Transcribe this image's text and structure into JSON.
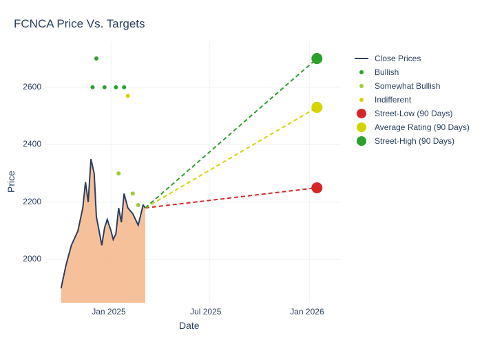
{
  "title": "FCNCA Price Vs. Targets",
  "x_label": "Date",
  "y_label": "Price",
  "background_color": "#ffffff",
  "grid_color": "#edf0f4",
  "text_color": "#2a3f5f",
  "title_fontsize": 17,
  "axis_label_fontsize": 14,
  "tick_fontsize": 12,
  "legend_fontsize": 12,
  "x_axis": {
    "type": "date",
    "range": [
      "2024-09-01",
      "2026-02-28"
    ],
    "ticks": [
      {
        "label": "Jan 2025",
        "value": "2025-01-01"
      },
      {
        "label": "Jul 2025",
        "value": "2025-07-01"
      },
      {
        "label": "Jan 2026",
        "value": "2026-01-01"
      }
    ]
  },
  "y_axis": {
    "range": [
      1850,
      2760
    ],
    "ticks": [
      2000,
      2200,
      2400,
      2600
    ]
  },
  "close_prices": {
    "label": "Close Prices",
    "line_color": "#2a3f5f",
    "line_width": 2,
    "fill_color": "#f5b58a",
    "fill_opacity": 0.85,
    "x": [
      "2024-10-01",
      "2024-10-10",
      "2024-10-20",
      "2024-11-01",
      "2024-11-10",
      "2024-11-15",
      "2024-11-20",
      "2024-11-25",
      "2024-12-01",
      "2024-12-05",
      "2024-12-10",
      "2024-12-15",
      "2024-12-20",
      "2024-12-25",
      "2025-01-01",
      "2025-01-05",
      "2025-01-10",
      "2025-01-15",
      "2025-01-20",
      "2025-01-25",
      "2025-02-01",
      "2025-02-10",
      "2025-02-20",
      "2025-03-01",
      "2025-03-05"
    ],
    "y": [
      1900,
      1980,
      2050,
      2100,
      2180,
      2270,
      2200,
      2350,
      2300,
      2150,
      2100,
      2050,
      2110,
      2140,
      2100,
      2070,
      2090,
      2180,
      2130,
      2230,
      2180,
      2160,
      2120,
      2190,
      2180
    ]
  },
  "ratings": [
    {
      "label": "Bullish",
      "color": "#2ca02c",
      "marker_size": 6,
      "points": [
        {
          "x": "2024-11-28",
          "y": 2600
        },
        {
          "x": "2024-12-05",
          "y": 2700
        },
        {
          "x": "2024-12-20",
          "y": 2600
        },
        {
          "x": "2025-01-10",
          "y": 2600
        },
        {
          "x": "2025-01-25",
          "y": 2600
        }
      ]
    },
    {
      "label": "Somewhat Bullish",
      "color": "#9acd32",
      "marker_size": 6,
      "points": [
        {
          "x": "2025-01-15",
          "y": 2300
        },
        {
          "x": "2025-02-10",
          "y": 2230
        },
        {
          "x": "2025-02-20",
          "y": 2190
        }
      ]
    },
    {
      "label": "Indifferent",
      "color": "#d4d400",
      "marker_size": 6,
      "points": [
        {
          "x": "2025-02-01",
          "y": 2570
        }
      ]
    }
  ],
  "targets": {
    "origin": {
      "x": "2025-03-05",
      "y": 2180
    },
    "end_x": "2026-01-15",
    "series": [
      {
        "label": "Street-Low (90 Days)",
        "color": "#d62728",
        "dash": "6,4",
        "line_width": 2,
        "marker_size": 16,
        "end_y": 2250
      },
      {
        "label": "Average Rating (90 Days)",
        "color": "#d4d400",
        "dash": "6,4",
        "line_width": 2,
        "marker_size": 16,
        "end_y": 2530
      },
      {
        "label": "Street-High (90 Days)",
        "color": "#2ca02c",
        "dash": "6,4",
        "line_width": 2,
        "marker_size": 16,
        "end_y": 2700
      }
    ]
  },
  "legend_order": [
    "close",
    "bullish",
    "somewhat_bullish",
    "indifferent",
    "street_low",
    "average",
    "street_high"
  ]
}
